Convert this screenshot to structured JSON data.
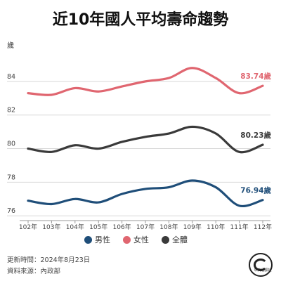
{
  "title": "近10年國人平均壽命趨勢",
  "chart_data": {
    "type": "line",
    "ylabel": "歲",
    "ylim": [
      75.8,
      85.5
    ],
    "yticks": [
      76,
      78,
      80,
      82,
      84
    ],
    "categories": [
      "102年",
      "103年",
      "104年",
      "105年",
      "106年",
      "107年",
      "108年",
      "109年",
      "110年",
      "111年",
      "112年"
    ],
    "series": [
      {
        "name": "男性",
        "color": "#1f4e79",
        "values": [
          76.9,
          76.7,
          77.0,
          76.8,
          77.3,
          77.6,
          77.7,
          78.1,
          77.7,
          76.6,
          76.94
        ],
        "end_label": "76.94歲"
      },
      {
        "name": "女性",
        "color": "#e06670",
        "values": [
          83.3,
          83.2,
          83.6,
          83.4,
          83.7,
          84.0,
          84.2,
          84.8,
          84.2,
          83.3,
          83.74
        ],
        "end_label": "83.74歲"
      },
      {
        "name": "全體",
        "color": "#3a3a3a",
        "values": [
          80.0,
          79.8,
          80.2,
          80.0,
          80.4,
          80.7,
          80.9,
          81.3,
          80.9,
          79.8,
          80.23
        ],
        "end_label": "80.23歲"
      }
    ],
    "grid": true,
    "legend_position": "bottom"
  },
  "footer": {
    "update": "更新時間：2024年8月23日",
    "source": "資料來源：內政部"
  },
  "logo_text": "中央通訊社"
}
